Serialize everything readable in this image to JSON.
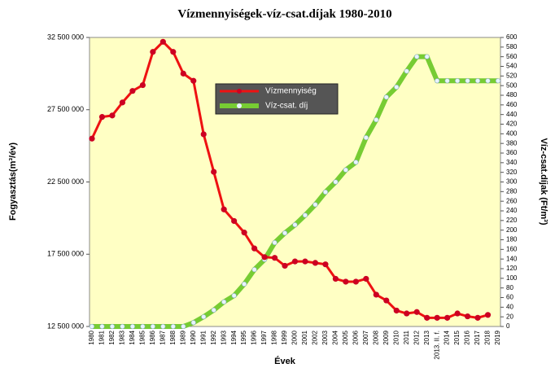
{
  "chart_data": {
    "type": "line",
    "title": "Vízmennyiségek-víz-csat.díjak 1980-2010",
    "xlabel": "Évek",
    "ylabel": "Fogyasztás(m³/év)",
    "y2label": "Víz-csat.díjak (Ft/m³)",
    "categories": [
      "1980",
      "1981",
      "1982",
      "1983",
      "1984",
      "1985",
      "1986",
      "1987",
      "1988",
      "1989",
      "1990",
      "1991",
      "1992",
      "1993",
      "1994",
      "1995",
      "1996",
      "1997",
      "1998",
      "1999",
      "2000",
      "2001",
      "2002",
      "2003",
      "2004",
      "2005",
      "2006",
      "2007",
      "2008",
      "2009",
      "2010",
      "2011",
      "2012",
      "2013",
      "2013. II. f.",
      "2014",
      "2015",
      "2016",
      "2017",
      "2018",
      "2019"
    ],
    "series": [
      {
        "name": "Vízmennyiség",
        "color": "#ee1111",
        "axis": "y",
        "values": [
          25500000,
          27000000,
          27100000,
          28000000,
          28800000,
          29200000,
          31500000,
          32200000,
          31500000,
          30000000,
          29500000,
          25800000,
          23200000,
          20600000,
          19800000,
          19000000,
          17900000,
          17300000,
          17250000,
          16700000,
          17000000,
          17000000,
          16900000,
          16800000,
          15800000,
          15600000,
          15600000,
          15800000,
          14700000,
          14300000,
          13600000,
          13400000,
          13500000,
          13100000,
          13100000,
          13100000,
          13400000,
          13200000,
          13100000,
          13300000,
          null
        ]
      },
      {
        "name": "Víz-csat. díj",
        "color": "#77cc33",
        "axis": "y2",
        "values": [
          0,
          0,
          0,
          0,
          0,
          0,
          0,
          0,
          0,
          0,
          8,
          20,
          34,
          51,
          64,
          88,
          118,
          139,
          174,
          194,
          211,
          231,
          253,
          279,
          300,
          325,
          341,
          392,
          429,
          476,
          497,
          530,
          560,
          560,
          510,
          510,
          510,
          510,
          510,
          510,
          510
        ]
      }
    ],
    "ylim": [
      12500000,
      32500000
    ],
    "yticks": [
      {
        "value": 12500000,
        "label": "12 500 000"
      },
      {
        "value": 17500000,
        "label": "17 500 000"
      },
      {
        "value": 22500000,
        "label": "22 500 000"
      },
      {
        "value": 27500000,
        "label": "27 500 000"
      },
      {
        "value": 32500000,
        "label": "32 500 000"
      }
    ],
    "y2lim": [
      0,
      600
    ],
    "y2ticks": [
      0,
      20,
      40,
      60,
      80,
      100,
      120,
      140,
      160,
      180,
      200,
      220,
      240,
      260,
      280,
      300,
      320,
      340,
      360,
      380,
      400,
      420,
      440,
      460,
      480,
      500,
      520,
      540,
      560,
      580,
      600
    ],
    "legend": "upper center"
  }
}
